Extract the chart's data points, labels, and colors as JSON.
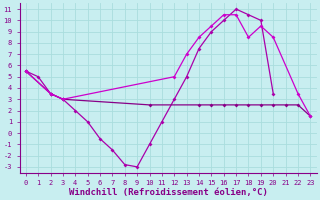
{
  "bg_color": "#c8eef0",
  "grid_color": "#aadddd",
  "line_color1": "#aa00aa",
  "line_color2": "#880088",
  "line_color3": "#cc00cc",
  "xlabel": "Windchill (Refroidissement éolien,°C)",
  "xlim": [
    -0.5,
    23.5
  ],
  "ylim": [
    -3.5,
    11.5
  ],
  "xticks": [
    0,
    1,
    2,
    3,
    4,
    5,
    6,
    7,
    8,
    9,
    10,
    11,
    12,
    13,
    14,
    15,
    16,
    17,
    18,
    19,
    20,
    21,
    22,
    23
  ],
  "yticks": [
    -3,
    -2,
    -1,
    0,
    1,
    2,
    3,
    4,
    5,
    6,
    7,
    8,
    9,
    10,
    11
  ],
  "line1_x": [
    0,
    1,
    2,
    3,
    4,
    5,
    6,
    7,
    8,
    9,
    10,
    11,
    12,
    13,
    14,
    15,
    16,
    17,
    18,
    19,
    20
  ],
  "line1_y": [
    5.5,
    5.0,
    3.5,
    3.0,
    2.0,
    1.0,
    -0.5,
    -1.5,
    -2.8,
    -3.0,
    -1.0,
    1.0,
    3.0,
    5.0,
    7.5,
    9.0,
    10.0,
    11.0,
    10.5,
    10.0,
    3.5
  ],
  "line2_x": [
    0,
    2,
    3,
    10,
    14,
    15,
    16,
    17,
    18,
    19,
    20,
    21,
    22,
    23
  ],
  "line2_y": [
    5.5,
    3.5,
    3.0,
    2.5,
    2.5,
    2.5,
    2.5,
    2.5,
    2.5,
    2.5,
    2.5,
    2.5,
    2.5,
    1.5
  ],
  "line3_x": [
    0,
    2,
    3,
    12,
    13,
    14,
    15,
    16,
    17,
    18,
    19,
    20,
    22,
    23
  ],
  "line3_y": [
    5.5,
    3.5,
    3.0,
    5.0,
    7.0,
    8.5,
    9.5,
    10.5,
    10.5,
    8.5,
    9.5,
    8.5,
    3.5,
    1.5
  ],
  "tick_fontsize": 5.0,
  "xlabel_fontsize": 6.5
}
